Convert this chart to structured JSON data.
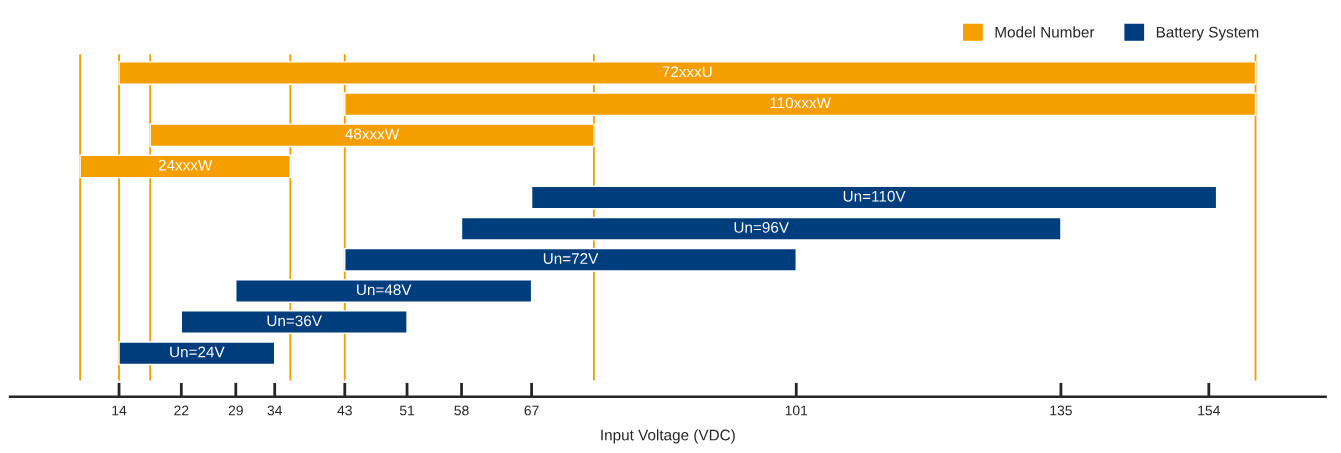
{
  "chart_data": {
    "type": "bar",
    "orientation": "horizontal",
    "xlabel": "Input Voltage (VDC)",
    "categories": [
      "72xxxU",
      "110xxxW",
      "48xxxW",
      "24xxxW",
      "Un=110V",
      "Un=96V",
      "Un=72V",
      "Un=48V",
      "Un=36V",
      "Un=24V"
    ],
    "series": [
      {
        "name": "Model Number",
        "color": "#f49e00",
        "base": [
          14,
          43,
          18,
          9,
          null,
          null,
          null,
          null,
          null,
          null
        ],
        "values": [
          146,
          117,
          57,
          27,
          null,
          null,
          null,
          null,
          null,
          null
        ]
      },
      {
        "name": "Battery System",
        "color": "#003d7c",
        "base": [
          null,
          null,
          null,
          null,
          67,
          58,
          43,
          29,
          22,
          14
        ],
        "values": [
          null,
          null,
          null,
          null,
          88,
          77,
          58,
          38,
          29,
          20
        ]
      }
    ],
    "xlim": [
      0,
      169
    ],
    "xticks": [
      14,
      22,
      29,
      34,
      43,
      51,
      58,
      67,
      101,
      135,
      154
    ],
    "ref_lines": [
      {
        "axis": "x",
        "value": 9,
        "color": "#f49e00"
      },
      {
        "axis": "x",
        "value": 14,
        "color": "#f49e00"
      },
      {
        "axis": "x",
        "value": 18,
        "color": "#f49e00"
      },
      {
        "axis": "x",
        "value": 36,
        "color": "#f49e00"
      },
      {
        "axis": "x",
        "value": 43,
        "color": "#f49e00"
      },
      {
        "axis": "x",
        "value": 75,
        "color": "#f49e00"
      },
      {
        "axis": "x",
        "value": 160,
        "color": "#f49e00"
      }
    ],
    "tick_labels": "x",
    "grid": false,
    "legend": "top right"
  }
}
